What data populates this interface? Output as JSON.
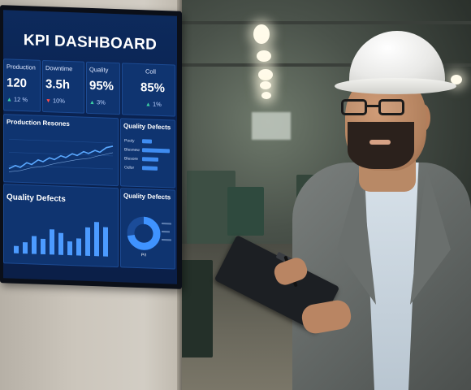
{
  "dashboard": {
    "title": "KPI DASHBOARD",
    "kpis": [
      {
        "label": "Production",
        "value": "120",
        "change": "12 %",
        "direction": "up"
      },
      {
        "label": "Downtime",
        "value": "3.5h",
        "change": "10%",
        "direction": "down"
      },
      {
        "label": "Quality",
        "value": "95%",
        "change": "3%",
        "direction": "up"
      },
      {
        "label": "Coll",
        "value": "85%",
        "change": "1%",
        "direction": "up"
      }
    ],
    "panels": {
      "production_trend": {
        "title": "Production Resones"
      },
      "quality_defects_bars": {
        "title": "Quality Defects",
        "rows": [
          {
            "label": "Pooly",
            "value": 0.35
          },
          {
            "label": "Blesnew",
            "value": 1.0
          },
          {
            "label": "Blesore",
            "value": 0.6
          },
          {
            "label": "Odlor",
            "value": 0.55
          }
        ]
      },
      "quality_defects_chart": {
        "title": "Quality Defects",
        "bars": [
          0.18,
          0.28,
          0.45,
          0.38,
          0.62,
          0.55,
          0.34,
          0.42,
          0.7,
          0.85,
          0.72
        ]
      },
      "quality_defects_donut": {
        "title": "Quality Defects",
        "center": "P/I",
        "share": 0.72
      }
    }
  }
}
